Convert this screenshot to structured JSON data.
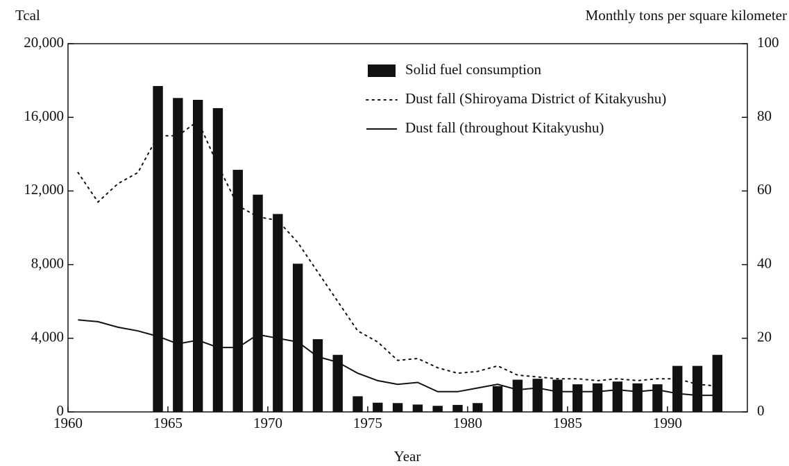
{
  "chart_data": {
    "type": "bar_line",
    "y_label": "Tcal",
    "y2_label": "Monthly tons per square kilometer",
    "x_label": "Year",
    "xlim": [
      1960,
      1994
    ],
    "xticks": [
      1960,
      1965,
      1970,
      1975,
      1980,
      1985,
      1990
    ],
    "ylim": [
      0,
      20000
    ],
    "yticks": [
      0,
      {
        "value": 4000,
        "label": "4,000"
      },
      {
        "value": 8000,
        "label": "8,000"
      },
      {
        "value": 12000,
        "label": "12,000"
      },
      {
        "value": 16000,
        "label": "16,000"
      },
      {
        "value": 20000,
        "label": "20,000"
      }
    ],
    "y2lim": [
      0,
      100
    ],
    "y2ticks": [
      0,
      20,
      40,
      60,
      80,
      100
    ],
    "legend": "upper right",
    "series": [
      {
        "name": "Solid fuel consumption",
        "kind": "bar",
        "color": "#111111",
        "x": [
          1964.5,
          1965.5,
          1966.5,
          1967.5,
          1968.5,
          1969.5,
          1970.5,
          1971.5,
          1972.5,
          1973.5,
          1974.5,
          1975.5,
          1976.5,
          1977.5,
          1978.5,
          1979.5,
          1980.5,
          1981.5,
          1982.5,
          1983.5,
          1984.5,
          1985.5,
          1986.5,
          1987.5,
          1988.5,
          1989.5,
          1990.5,
          1991.5,
          1992.5
        ],
        "values": [
          17700,
          17050,
          16950,
          16500,
          13150,
          11800,
          10750,
          8050,
          3950,
          3100,
          850,
          500,
          480,
          400,
          330,
          380,
          480,
          1400,
          1750,
          1800,
          1750,
          1500,
          1550,
          1650,
          1550,
          1500,
          2500,
          2500,
          3100
        ]
      },
      {
        "name": "Dust fall (Shiroyama District of Kitakyushu)",
        "kind": "dotted",
        "color": "#111111",
        "axis": "y2",
        "x": [
          1960.5,
          1961.5,
          1962.5,
          1963.5,
          1964.5,
          1965.5,
          1966.5,
          1967.5,
          1968.5,
          1969.5,
          1970.5,
          1971.5,
          1972.5,
          1973.5,
          1974.5,
          1975.5,
          1976.5,
          1977.5,
          1978.5,
          1979.5,
          1980.5,
          1981.5,
          1982.5,
          1983.5,
          1984.5,
          1985.5,
          1986.5,
          1987.5,
          1988.5,
          1989.5,
          1990.5,
          1991.5,
          1992.5
        ],
        "values": [
          65,
          57,
          62,
          65,
          75,
          75,
          79,
          67,
          56,
          53,
          52,
          46,
          38,
          30,
          22,
          19,
          14,
          14.5,
          12,
          10.5,
          11,
          12.5,
          10,
          9.5,
          9,
          9,
          8.5,
          9,
          8.5,
          9,
          9,
          7.5,
          7
        ]
      },
      {
        "name": "Dust fall (throughout Kitakyushu)",
        "kind": "solid",
        "color": "#111111",
        "axis": "y2",
        "x": [
          1960.5,
          1961.5,
          1962.5,
          1963.5,
          1964.5,
          1965.5,
          1966.5,
          1967.5,
          1968.5,
          1969.5,
          1970.5,
          1971.5,
          1972.5,
          1973.5,
          1974.5,
          1975.5,
          1976.5,
          1977.5,
          1978.5,
          1979.5,
          1980.5,
          1981.5,
          1982.5,
          1983.5,
          1984.5,
          1985.5,
          1986.5,
          1987.5,
          1988.5,
          1989.5,
          1990.5,
          1991.5,
          1992.5
        ],
        "values": [
          25,
          24.5,
          23,
          22,
          20.5,
          18.5,
          19.5,
          17.5,
          17.5,
          21,
          20,
          19,
          15,
          13.5,
          10.5,
          8.5,
          7.5,
          8,
          5.5,
          5.5,
          6.5,
          7.5,
          6,
          6.5,
          5.5,
          5.5,
          5.5,
          6,
          5.5,
          6,
          5,
          4.5,
          4.5
        ]
      }
    ]
  }
}
